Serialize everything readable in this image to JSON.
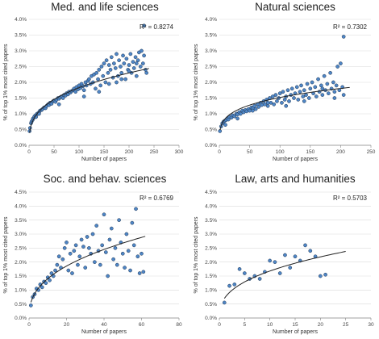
{
  "figure": {
    "background": "#ffffff",
    "marker_fill": "#4f86c6",
    "marker_edge": "#1f3550",
    "trend_color": "#222222"
  },
  "chart_data": [
    {
      "type": "scatter",
      "title": "Med. and life sciences",
      "xlabel": "Number of papers",
      "ylabel": "% of top 1% most cited papers",
      "xlim": [
        0,
        300
      ],
      "ylim": [
        0,
        4.0
      ],
      "xticks": [
        0,
        50,
        100,
        150,
        200,
        250,
        300
      ],
      "xtick_labels": [
        "0",
        "50",
        "100",
        "150",
        "200",
        "250",
        "300"
      ],
      "yticks": [
        0,
        0.5,
        1.0,
        1.5,
        2.0,
        2.5,
        3.0,
        3.5,
        4.0
      ],
      "ytick_labels": [
        "0.0%",
        "0.5%",
        "1.0%",
        "1.5%",
        "2.0%",
        "2.5%",
        "3.0%",
        "3.5%",
        "4.0%"
      ],
      "r2_label": "R² = 0.8274",
      "trend": {
        "type": "power",
        "a": 0.4,
        "b": 0.33,
        "x_range": [
          1,
          240
        ]
      },
      "points": {
        "x": [
          1,
          2,
          4,
          5,
          7,
          8,
          10,
          11,
          13,
          14,
          16,
          18,
          20,
          22,
          25,
          27,
          30,
          33,
          35,
          38,
          40,
          42,
          45,
          48,
          50,
          53,
          55,
          58,
          60,
          62,
          65,
          68,
          70,
          73,
          75,
          78,
          80,
          83,
          85,
          88,
          90,
          93,
          95,
          98,
          100,
          103,
          105,
          108,
          110,
          113,
          115,
          118,
          120,
          123,
          125,
          128,
          130,
          133,
          135,
          138,
          140,
          143,
          145,
          148,
          150,
          153,
          155,
          158,
          160,
          163,
          165,
          168,
          170,
          173,
          175,
          178,
          180,
          183,
          185,
          188,
          190,
          193,
          195,
          198,
          200,
          203,
          205,
          208,
          210,
          213,
          215,
          218,
          220,
          223,
          225,
          228,
          230,
          233,
          235,
          20,
          60,
          110,
          140,
          160,
          175,
          185,
          200,
          215,
          230
        ],
        "y": [
          0.45,
          0.55,
          0.7,
          0.75,
          0.8,
          0.85,
          0.88,
          0.92,
          0.95,
          0.9,
          1.0,
          1.0,
          1.05,
          1.1,
          1.12,
          1.15,
          1.2,
          1.18,
          1.25,
          1.3,
          1.28,
          1.35,
          1.32,
          1.4,
          1.42,
          1.38,
          1.45,
          1.5,
          1.48,
          1.52,
          1.55,
          1.5,
          1.6,
          1.58,
          1.65,
          1.62,
          1.7,
          1.68,
          1.72,
          1.75,
          1.8,
          1.7,
          1.85,
          1.78,
          1.9,
          1.82,
          1.95,
          1.88,
          1.75,
          2.0,
          1.9,
          2.05,
          2.1,
          1.95,
          2.2,
          2.0,
          2.25,
          1.8,
          2.3,
          2.1,
          2.4,
          1.9,
          2.5,
          2.2,
          2.6,
          2.0,
          2.7,
          2.3,
          2.55,
          2.4,
          2.8,
          2.15,
          2.6,
          2.45,
          2.9,
          2.2,
          2.7,
          2.5,
          2.3,
          2.85,
          2.6,
          2.1,
          2.75,
          2.4,
          2.55,
          2.9,
          2.3,
          2.65,
          2.45,
          2.8,
          2.2,
          2.7,
          2.95,
          2.5,
          3.0,
          2.6,
          2.85,
          2.4,
          2.3,
          1.0,
          1.3,
          1.55,
          1.7,
          1.95,
          2.0,
          2.1,
          2.35,
          2.6,
          3.8
        ]
      }
    },
    {
      "type": "scatter",
      "title": "Natural sciences",
      "xlabel": "Number of papers",
      "ylabel": "% of top 1% most cited papers",
      "xlim": [
        0,
        250
      ],
      "ylim": [
        0,
        4.0
      ],
      "xticks": [
        0,
        50,
        100,
        150,
        200,
        250
      ],
      "xtick_labels": [
        "0",
        "50",
        "100",
        "150",
        "200",
        "250"
      ],
      "yticks": [
        0,
        0.5,
        1.0,
        1.5,
        2.0,
        2.5,
        3.0,
        3.5,
        4.0
      ],
      "ytick_labels": [
        "0.0%",
        "0.5%",
        "1.0%",
        "1.5%",
        "2.0%",
        "2.5%",
        "3.0%",
        "3.5%",
        "4.0%"
      ],
      "r2_label": "R² = 0.7302",
      "trend": {
        "type": "power",
        "a": 0.48,
        "b": 0.25,
        "x_range": [
          1,
          215
        ]
      },
      "points": {
        "x": [
          1,
          3,
          5,
          7,
          9,
          11,
          13,
          15,
          17,
          20,
          22,
          25,
          28,
          30,
          33,
          35,
          38,
          40,
          43,
          45,
          48,
          50,
          53,
          55,
          58,
          60,
          63,
          65,
          68,
          70,
          73,
          75,
          78,
          80,
          83,
          85,
          88,
          90,
          93,
          95,
          98,
          100,
          103,
          105,
          108,
          110,
          113,
          115,
          118,
          120,
          123,
          125,
          128,
          130,
          133,
          135,
          138,
          140,
          143,
          145,
          148,
          150,
          153,
          155,
          158,
          160,
          163,
          165,
          168,
          170,
          173,
          175,
          178,
          180,
          183,
          185,
          188,
          190,
          193,
          195,
          198,
          200,
          203,
          205,
          10,
          30,
          55,
          80,
          110,
          140,
          170,
          190,
          205
        ],
        "y": [
          0.45,
          0.6,
          0.7,
          0.75,
          0.78,
          0.8,
          0.85,
          0.82,
          0.9,
          0.88,
          0.95,
          0.92,
          1.0,
          0.98,
          1.05,
          1.0,
          1.1,
          1.05,
          1.12,
          1.08,
          1.15,
          1.1,
          1.2,
          1.18,
          1.25,
          1.15,
          1.3,
          1.22,
          1.35,
          1.28,
          1.4,
          1.3,
          1.45,
          1.25,
          1.5,
          1.35,
          1.55,
          1.3,
          1.6,
          1.4,
          1.5,
          1.65,
          1.35,
          1.7,
          1.45,
          1.55,
          1.75,
          1.4,
          1.6,
          1.8,
          1.5,
          1.65,
          1.85,
          1.45,
          1.7,
          1.9,
          1.55,
          1.75,
          1.6,
          1.95,
          1.5,
          1.8,
          2.0,
          1.65,
          1.85,
          1.55,
          2.1,
          1.7,
          1.9,
          1.6,
          2.2,
          1.75,
          1.95,
          1.65,
          2.3,
          1.8,
          2.0,
          1.7,
          1.9,
          2.5,
          1.75,
          2.6,
          1.85,
          1.6,
          0.65,
          0.85,
          1.1,
          1.35,
          1.25,
          1.4,
          1.8,
          1.5,
          3.45
        ]
      }
    },
    {
      "type": "scatter",
      "title": "Soc. and behav. sciences",
      "xlabel": "Number of papers",
      "ylabel": "% of top 1% most cited papers",
      "xlim": [
        0,
        80
      ],
      "ylim": [
        0,
        4.5
      ],
      "xticks": [
        0,
        20,
        40,
        60,
        80
      ],
      "xtick_labels": [
        "0",
        "20",
        "40",
        "60",
        "80"
      ],
      "yticks": [
        0,
        0.5,
        1.0,
        1.5,
        2.0,
        2.5,
        3.0,
        3.5,
        4.0,
        4.5
      ],
      "ytick_labels": [
        "0.0%",
        "0.5%",
        "1.0%",
        "1.5%",
        "2.0%",
        "2.5%",
        "3.0%",
        "3.5%",
        "4.0%",
        "4.5%"
      ],
      "r2_label": "R² = 0.6769",
      "trend": {
        "type": "power",
        "a": 0.56,
        "b": 0.4,
        "x_range": [
          1,
          62
        ]
      },
      "points": {
        "x": [
          1,
          2,
          3,
          4,
          5,
          6,
          7,
          8,
          9,
          10,
          11,
          12,
          13,
          14,
          15,
          16,
          17,
          18,
          19,
          20,
          21,
          22,
          23,
          24,
          25,
          26,
          27,
          28,
          29,
          30,
          31,
          32,
          33,
          34,
          35,
          36,
          37,
          38,
          39,
          40,
          41,
          42,
          43,
          44,
          45,
          46,
          47,
          48,
          49,
          50,
          51,
          52,
          53,
          54,
          55,
          56,
          57,
          58,
          59,
          60,
          61
        ],
        "y": [
          0.45,
          0.75,
          0.85,
          1.05,
          1.0,
          1.2,
          1.1,
          1.3,
          1.25,
          1.45,
          1.35,
          1.6,
          1.5,
          1.7,
          1.9,
          2.2,
          1.8,
          2.1,
          2.5,
          2.7,
          1.7,
          2.3,
          1.6,
          2.4,
          2.6,
          1.9,
          2.2,
          2.8,
          2.55,
          1.8,
          2.9,
          2.5,
          2.3,
          3.0,
          2.0,
          3.3,
          2.4,
          1.9,
          2.6,
          3.7,
          2.35,
          1.5,
          2.8,
          3.2,
          2.1,
          2.5,
          1.9,
          3.5,
          2.7,
          2.3,
          1.8,
          3.0,
          2.4,
          1.7,
          3.4,
          2.6,
          3.9,
          2.2,
          1.6,
          2.3,
          1.65
        ]
      }
    },
    {
      "type": "scatter",
      "title": "Law, arts and humanities",
      "xlabel": "Number of papers",
      "ylabel": "% of top 1% most cited papers",
      "xlim": [
        0,
        30
      ],
      "ylim": [
        0,
        4.5
      ],
      "xticks": [
        0,
        5,
        10,
        15,
        20,
        25,
        30
      ],
      "xtick_labels": [
        "0",
        "5",
        "10",
        "15",
        "20",
        "25",
        "30"
      ],
      "yticks": [
        0,
        0.5,
        1.0,
        1.5,
        2.0,
        2.5,
        3.0,
        3.5,
        4.0,
        4.5
      ],
      "ytick_labels": [
        "0.0%",
        "0.5%",
        "1.0%",
        "1.5%",
        "2.0%",
        "2.5%",
        "3.0%",
        "3.5%",
        "4.0%",
        "4.5%"
      ],
      "r2_label": "R² = 0.5703",
      "trend": {
        "type": "power",
        "a": 0.7,
        "b": 0.38,
        "x_range": [
          1,
          25
        ]
      },
      "points": {
        "x": [
          1,
          2,
          3,
          4,
          5,
          6,
          7,
          8,
          9,
          10,
          11,
          12,
          13,
          14,
          15,
          16,
          17,
          18,
          19,
          20,
          21
        ],
        "y": [
          0.55,
          1.15,
          1.2,
          1.75,
          1.6,
          1.4,
          1.5,
          1.4,
          1.65,
          2.05,
          2.0,
          1.6,
          2.25,
          1.8,
          2.2,
          2.05,
          2.6,
          2.4,
          2.2,
          1.5,
          1.55
        ]
      }
    }
  ]
}
